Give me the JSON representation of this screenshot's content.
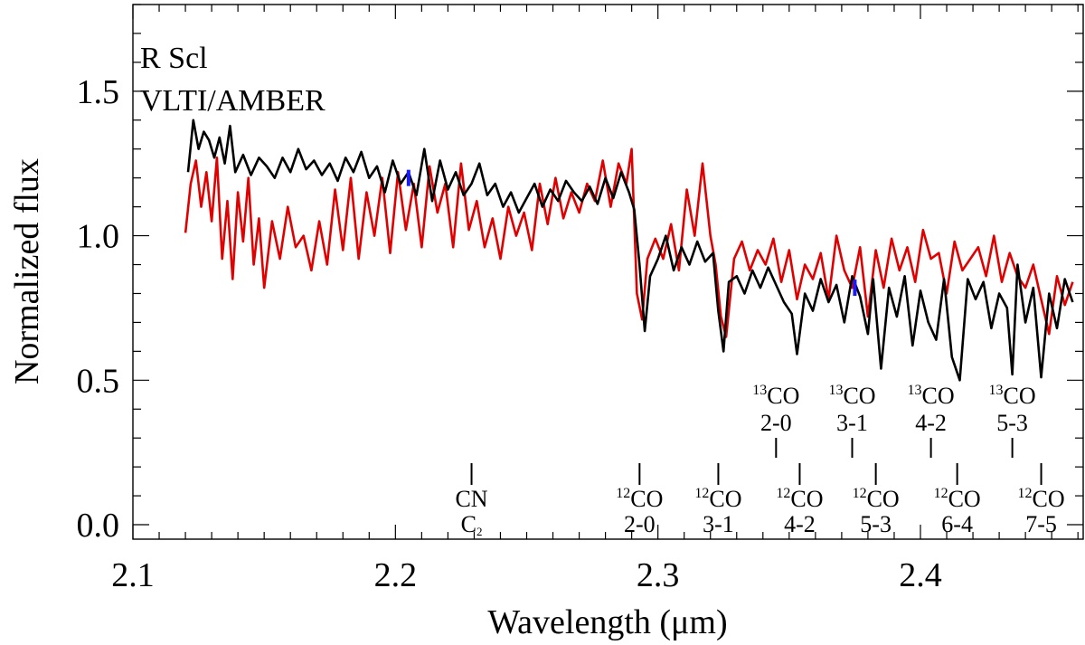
{
  "chart_data": {
    "type": "line",
    "title": "",
    "annotations_top": [
      "R Scl",
      "VLTI/AMBER"
    ],
    "xlabel": "Wavelength (μm)",
    "ylabel": "Normalized flux",
    "xlim": [
      2.1,
      2.462
    ],
    "ylim": [
      -0.05,
      1.8
    ],
    "xticks": [
      {
        "value": 2.1,
        "label": "2.1"
      },
      {
        "value": 2.2,
        "label": "2.2"
      },
      {
        "value": 2.3,
        "label": "2.3"
      },
      {
        "value": 2.4,
        "label": "2.4"
      }
    ],
    "yticks": [
      {
        "value": 0.0,
        "label": "0.0"
      },
      {
        "value": 0.5,
        "label": "0.5"
      },
      {
        "value": 1.0,
        "label": "1.0"
      },
      {
        "value": 1.5,
        "label": "1.5"
      }
    ],
    "x_minor_step": 0.01,
    "y_minor_step": 0.1,
    "series": [
      {
        "name": "black spectrum",
        "color": "#000000",
        "x": [
          2.121,
          2.123,
          2.125,
          2.127,
          2.129,
          2.131,
          2.133,
          2.135,
          2.137,
          2.139,
          2.142,
          2.145,
          2.148,
          2.151,
          2.154,
          2.157,
          2.16,
          2.163,
          2.166,
          2.169,
          2.172,
          2.175,
          2.178,
          2.181,
          2.184,
          2.187,
          2.19,
          2.193,
          2.196,
          2.199,
          2.202,
          2.205,
          2.208,
          2.211,
          2.214,
          2.217,
          2.22,
          2.223,
          2.226,
          2.229,
          2.232,
          2.235,
          2.238,
          2.241,
          2.244,
          2.247,
          2.25,
          2.253,
          2.256,
          2.259,
          2.262,
          2.265,
          2.268,
          2.271,
          2.274,
          2.277,
          2.28,
          2.283,
          2.286,
          2.289,
          2.291,
          2.293,
          2.295,
          2.297,
          2.3,
          2.303,
          2.306,
          2.309,
          2.312,
          2.315,
          2.318,
          2.321,
          2.323,
          2.325,
          2.327,
          2.33,
          2.333,
          2.336,
          2.339,
          2.342,
          2.345,
          2.348,
          2.351,
          2.353,
          2.356,
          2.359,
          2.362,
          2.365,
          2.368,
          2.371,
          2.374,
          2.377,
          2.38,
          2.382,
          2.385,
          2.388,
          2.391,
          2.394,
          2.397,
          2.4,
          2.403,
          2.406,
          2.409,
          2.412,
          2.415,
          2.418,
          2.421,
          2.424,
          2.427,
          2.43,
          2.433,
          2.435,
          2.437,
          2.44,
          2.443,
          2.446,
          2.449,
          2.452,
          2.455,
          2.458
        ],
        "y": [
          1.22,
          1.4,
          1.3,
          1.36,
          1.33,
          1.27,
          1.34,
          1.25,
          1.38,
          1.22,
          1.28,
          1.21,
          1.27,
          1.24,
          1.2,
          1.27,
          1.22,
          1.3,
          1.23,
          1.26,
          1.21,
          1.25,
          1.19,
          1.27,
          1.22,
          1.29,
          1.2,
          1.24,
          1.15,
          1.26,
          1.18,
          1.22,
          1.14,
          1.3,
          1.12,
          1.26,
          1.16,
          1.22,
          1.14,
          1.18,
          1.25,
          1.14,
          1.18,
          1.1,
          1.15,
          1.08,
          1.13,
          1.18,
          1.1,
          1.16,
          1.12,
          1.19,
          1.15,
          1.12,
          1.17,
          1.11,
          1.2,
          1.13,
          1.22,
          1.15,
          1.09,
          0.9,
          0.67,
          0.86,
          0.92,
          1.0,
          0.88,
          0.96,
          0.9,
          0.98,
          0.91,
          0.94,
          0.74,
          0.6,
          0.84,
          0.86,
          0.8,
          0.88,
          0.82,
          0.89,
          0.83,
          0.77,
          0.73,
          0.59,
          0.8,
          0.74,
          0.85,
          0.77,
          0.83,
          0.7,
          0.86,
          0.79,
          0.66,
          0.85,
          0.54,
          0.82,
          0.72,
          0.86,
          0.62,
          0.81,
          0.7,
          0.64,
          0.85,
          0.58,
          0.5,
          0.85,
          0.78,
          0.84,
          0.68,
          0.8,
          0.75,
          0.52,
          0.9,
          0.7,
          0.82,
          0.51,
          0.8,
          0.68,
          0.85,
          0.77
        ],
        "marker": {
          "x": 2.205,
          "y": 1.2,
          "color": "#1a1aff"
        }
      },
      {
        "name": "red spectrum",
        "color": "#e00000",
        "x": [
          2.12,
          2.122,
          2.124,
          2.126,
          2.128,
          2.13,
          2.132,
          2.134,
          2.136,
          2.138,
          2.14,
          2.142,
          2.144,
          2.146,
          2.148,
          2.15,
          2.153,
          2.156,
          2.159,
          2.162,
          2.165,
          2.168,
          2.171,
          2.174,
          2.177,
          2.18,
          2.183,
          2.186,
          2.189,
          2.192,
          2.195,
          2.198,
          2.201,
          2.204,
          2.207,
          2.21,
          2.213,
          2.216,
          2.219,
          2.222,
          2.225,
          2.228,
          2.231,
          2.234,
          2.237,
          2.24,
          2.243,
          2.246,
          2.249,
          2.252,
          2.255,
          2.258,
          2.261,
          2.264,
          2.267,
          2.27,
          2.273,
          2.276,
          2.279,
          2.282,
          2.285,
          2.288,
          2.29,
          2.292,
          2.294,
          2.296,
          2.299,
          2.302,
          2.305,
          2.308,
          2.311,
          2.314,
          2.317,
          2.32,
          2.322,
          2.324,
          2.326,
          2.329,
          2.332,
          2.335,
          2.338,
          2.341,
          2.344,
          2.347,
          2.35,
          2.353,
          2.356,
          2.359,
          2.362,
          2.365,
          2.368,
          2.371,
          2.374,
          2.377,
          2.38,
          2.383,
          2.386,
          2.389,
          2.392,
          2.395,
          2.398,
          2.401,
          2.404,
          2.407,
          2.41,
          2.413,
          2.416,
          2.419,
          2.422,
          2.425,
          2.428,
          2.431,
          2.434,
          2.437,
          2.44,
          2.443,
          2.446,
          2.449,
          2.452,
          2.455,
          2.458
        ],
        "y": [
          1.01,
          1.18,
          1.26,
          1.1,
          1.22,
          1.05,
          1.27,
          0.92,
          1.12,
          0.85,
          1.15,
          0.98,
          1.2,
          0.9,
          1.06,
          0.82,
          1.05,
          0.92,
          1.1,
          0.96,
          1.0,
          0.88,
          1.05,
          0.9,
          1.16,
          0.95,
          1.2,
          0.92,
          1.15,
          1.0,
          1.2,
          0.94,
          1.22,
          1.02,
          1.18,
          0.96,
          1.24,
          1.08,
          1.18,
          0.96,
          1.25,
          1.02,
          1.12,
          0.96,
          1.06,
          0.92,
          1.1,
          1.0,
          1.08,
          0.95,
          1.18,
          1.04,
          1.2,
          1.06,
          1.15,
          1.08,
          1.18,
          1.12,
          1.26,
          1.1,
          1.25,
          1.18,
          1.3,
          0.8,
          0.71,
          0.92,
          0.99,
          0.92,
          1.04,
          0.88,
          1.16,
          1.0,
          1.25,
          1.0,
          0.9,
          0.72,
          0.65,
          0.92,
          0.98,
          0.88,
          0.95,
          0.9,
          0.99,
          0.84,
          0.95,
          0.78,
          0.9,
          0.85,
          0.94,
          0.78,
          1.0,
          0.88,
          0.82,
          0.96,
          0.72,
          0.95,
          0.82,
          0.99,
          0.88,
          0.96,
          0.84,
          1.02,
          0.92,
          0.94,
          0.8,
          0.98,
          0.88,
          0.92,
          0.96,
          0.86,
          1.0,
          0.84,
          0.94,
          0.86,
          0.82,
          0.9,
          0.78,
          0.66,
          0.86,
          0.76,
          0.84
        ],
        "marker": {
          "x": 2.375,
          "y": 0.82,
          "color": "#1a1aff"
        }
      }
    ],
    "line_markers": [
      {
        "label_main": "CN",
        "label_sub": "C",
        "label_sub_index": "2",
        "x": 2.229,
        "row": "lower"
      },
      {
        "sup": "12",
        "species": "CO",
        "band": "2-0",
        "x": 2.293,
        "row": "lower"
      },
      {
        "sup": "12",
        "species": "CO",
        "band": "3-1",
        "x": 2.323,
        "row": "lower"
      },
      {
        "sup": "12",
        "species": "CO",
        "band": "4-2",
        "x": 2.354,
        "row": "lower"
      },
      {
        "sup": "12",
        "species": "CO",
        "band": "5-3",
        "x": 2.383,
        "row": "lower"
      },
      {
        "sup": "12",
        "species": "CO",
        "band": "6-4",
        "x": 2.414,
        "row": "lower"
      },
      {
        "sup": "12",
        "species": "CO",
        "band": "7-5",
        "x": 2.446,
        "row": "lower"
      },
      {
        "sup": "13",
        "species": "CO",
        "band": "2-0",
        "x": 2.345,
        "row": "upper"
      },
      {
        "sup": "13",
        "species": "CO",
        "band": "3-1",
        "x": 2.374,
        "row": "upper"
      },
      {
        "sup": "13",
        "species": "CO",
        "band": "4-2",
        "x": 2.404,
        "row": "upper"
      },
      {
        "sup": "13",
        "species": "CO",
        "band": "5-3",
        "x": 2.435,
        "row": "upper"
      }
    ]
  }
}
